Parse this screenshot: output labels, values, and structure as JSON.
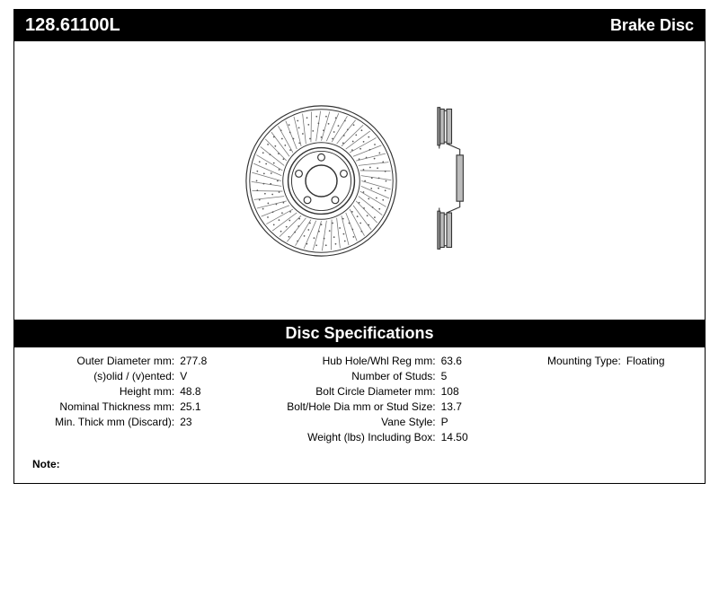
{
  "header": {
    "part_number": "128.61100L",
    "product_name": "Brake Disc"
  },
  "section_title": "Disc Specifications",
  "specs_col1": [
    {
      "label": "Outer Diameter mm:",
      "value": "277.8"
    },
    {
      "label": "(s)olid / (v)ented:",
      "value": "V"
    },
    {
      "label": "Height mm:",
      "value": "48.8"
    },
    {
      "label": "Nominal Thickness mm:",
      "value": "25.1"
    },
    {
      "label": "Min. Thick mm (Discard):",
      "value": "23"
    }
  ],
  "specs_col2": [
    {
      "label": "Hub Hole/Whl Reg mm:",
      "value": "63.6"
    },
    {
      "label": "Number of Studs:",
      "value": "5"
    },
    {
      "label": "Bolt Circle Diameter mm:",
      "value": "108"
    },
    {
      "label": "Bolt/Hole Dia mm or Stud Size:",
      "value": "13.7"
    },
    {
      "label": "Vane Style:",
      "value": "P"
    },
    {
      "label": "Weight (lbs) Including Box:",
      "value": "14.50"
    }
  ],
  "specs_col3": [
    {
      "label": "Mounting Type:",
      "value": "Floating"
    }
  ],
  "note": {
    "label": "Note:",
    "text": ""
  },
  "diagram": {
    "outer_color": "#333333",
    "hatch_color": "#666666",
    "hub_color": "#333333",
    "side_fill": "#b8b8b8",
    "side_stroke": "#333333"
  }
}
